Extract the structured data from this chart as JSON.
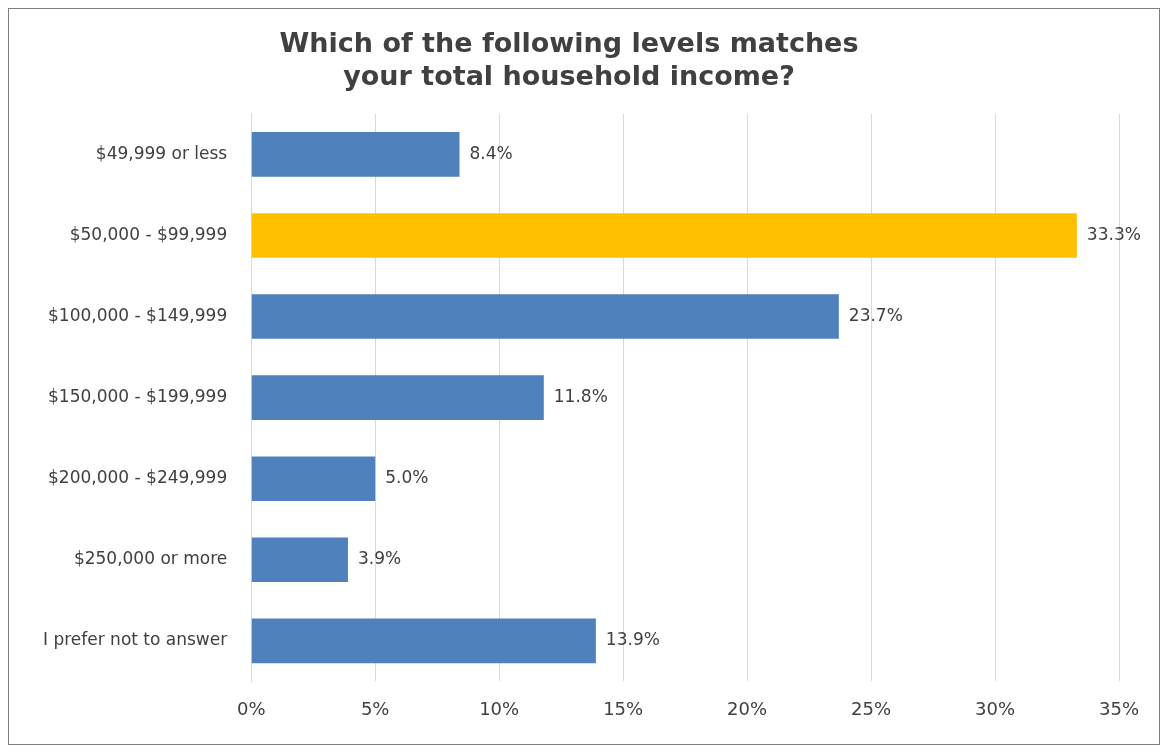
{
  "chart_data": {
    "type": "bar",
    "orientation": "horizontal",
    "title": "Which of the following levels matches your total household income?",
    "categories": [
      "$49,999 or less",
      "$50,000 - $99,999",
      "$100,000 - $149,999",
      "$150,000 - $199,999",
      "$200,000 - $249,999",
      "$250,000 or more",
      "I prefer not to answer"
    ],
    "values": [
      8.4,
      33.3,
      23.7,
      11.8,
      5.0,
      3.9,
      13.9
    ],
    "colors": [
      "#4f81bd",
      "#ffc000",
      "#4f81bd",
      "#4f81bd",
      "#4f81bd",
      "#4f81bd",
      "#4f81bd"
    ],
    "value_labels": [
      "8.4%",
      "33.3%",
      "23.7%",
      "11.8%",
      "5.0%",
      "3.9%",
      "13.9%"
    ],
    "xlim": [
      0,
      35
    ],
    "xticks": [
      {
        "value": 0,
        "label": "0%"
      },
      {
        "value": 5,
        "label": "5%"
      },
      {
        "value": 10,
        "label": "10%"
      },
      {
        "value": 15,
        "label": "15%"
      },
      {
        "value": 20,
        "label": "20%"
      },
      {
        "value": 25,
        "label": "25%"
      },
      {
        "value": 30,
        "label": "30%"
      },
      {
        "value": 35,
        "label": "35%"
      }
    ],
    "grid": "x",
    "legend": false
  }
}
